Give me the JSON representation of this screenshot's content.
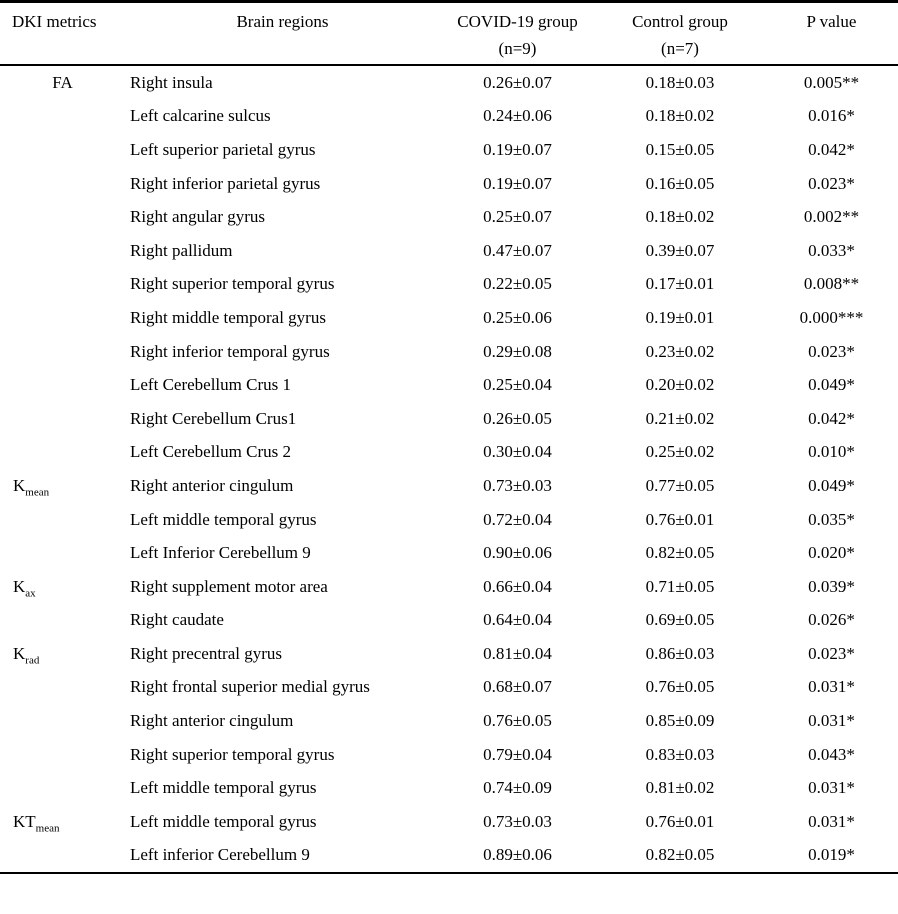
{
  "table": {
    "headers": {
      "metric": "DKI metrics",
      "region": "Brain regions",
      "covid_line1": "COVID-19 group",
      "covid_line2": "(n=9)",
      "control_line1": "Control group",
      "control_line2": "(n=7)",
      "p": "P value"
    },
    "rows": [
      {
        "metric_base": "FA",
        "metric_sub": "",
        "region": "Right insula",
        "covid": "0.26±0.07",
        "control": "0.18±0.03",
        "p": "0.005**"
      },
      {
        "metric_base": "",
        "metric_sub": "",
        "region": "Left calcarine sulcus",
        "covid": "0.24±0.06",
        "control": "0.18±0.02",
        "p": "0.016*"
      },
      {
        "metric_base": "",
        "metric_sub": "",
        "region": "Left superior parietal gyrus",
        "covid": "0.19±0.07",
        "control": "0.15±0.05",
        "p": "0.042*"
      },
      {
        "metric_base": "",
        "metric_sub": "",
        "region": "Right inferior parietal gyrus",
        "covid": "0.19±0.07",
        "control": "0.16±0.05",
        "p": "0.023*"
      },
      {
        "metric_base": "",
        "metric_sub": "",
        "region": "Right angular gyrus",
        "covid": "0.25±0.07",
        "control": "0.18±0.02",
        "p": "0.002**"
      },
      {
        "metric_base": "",
        "metric_sub": "",
        "region": "Right pallidum",
        "covid": "0.47±0.07",
        "control": "0.39±0.07",
        "p": "0.033*"
      },
      {
        "metric_base": "",
        "metric_sub": "",
        "region": "Right superior temporal gyrus",
        "covid": "0.22±0.05",
        "control": "0.17±0.01",
        "p": "0.008**"
      },
      {
        "metric_base": "",
        "metric_sub": "",
        "region": "Right middle temporal gyrus",
        "covid": "0.25±0.06",
        "control": "0.19±0.01",
        "p": "0.000***"
      },
      {
        "metric_base": "",
        "metric_sub": "",
        "region": "Right inferior temporal gyrus",
        "covid": "0.29±0.08",
        "control": "0.23±0.02",
        "p": "0.023*"
      },
      {
        "metric_base": "",
        "metric_sub": "",
        "region": "Left Cerebellum Crus 1",
        "covid": "0.25±0.04",
        "control": "0.20±0.02",
        "p": "0.049*"
      },
      {
        "metric_base": "",
        "metric_sub": "",
        "region": "Right Cerebellum Crus1",
        "covid": "0.26±0.05",
        "control": "0.21±0.02",
        "p": "0.042*"
      },
      {
        "metric_base": "",
        "metric_sub": "",
        "region": "Left Cerebellum Crus 2",
        "covid": "0.30±0.04",
        "control": "0.25±0.02",
        "p": "0.010*"
      },
      {
        "metric_base": "K",
        "metric_sub": "mean",
        "region": "Right anterior cingulum",
        "covid": "0.73±0.03",
        "control": "0.77±0.05",
        "p": "0.049*"
      },
      {
        "metric_base": "",
        "metric_sub": "",
        "region": "Left middle temporal gyrus",
        "covid": "0.72±0.04",
        "control": "0.76±0.01",
        "p": "0.035*"
      },
      {
        "metric_base": "",
        "metric_sub": "",
        "region": "Left Inferior Cerebellum 9",
        "covid": "0.90±0.06",
        "control": "0.82±0.05",
        "p": "0.020*"
      },
      {
        "metric_base": "K",
        "metric_sub": "ax",
        "region": "Right supplement motor area",
        "covid": "0.66±0.04",
        "control": "0.71±0.05",
        "p": "0.039*"
      },
      {
        "metric_base": "",
        "metric_sub": "",
        "region": "Right caudate",
        "covid": "0.64±0.04",
        "control": "0.69±0.05",
        "p": "0.026*"
      },
      {
        "metric_base": "K",
        "metric_sub": "rad",
        "region": "Right precentral gyrus",
        "covid": "0.81±0.04",
        "control": "0.86±0.03",
        "p": "0.023*"
      },
      {
        "metric_base": "",
        "metric_sub": "",
        "region": "Right frontal superior medial gyrus",
        "covid": "0.68±0.07",
        "control": "0.76±0.05",
        "p": "0.031*"
      },
      {
        "metric_base": "",
        "metric_sub": "",
        "region": "Right anterior cingulum",
        "covid": "0.76±0.05",
        "control": "0.85±0.09",
        "p": "0.031*"
      },
      {
        "metric_base": "",
        "metric_sub": "",
        "region": "Right superior temporal gyrus",
        "covid": "0.79±0.04",
        "control": "0.83±0.03",
        "p": "0.043*"
      },
      {
        "metric_base": "",
        "metric_sub": "",
        "region": "Left middle temporal gyrus",
        "covid": "0.74±0.09",
        "control": "0.81±0.02",
        "p": "0.031*"
      },
      {
        "metric_base": "KT",
        "metric_sub": "mean",
        "region": "Left middle temporal gyrus",
        "covid": "0.73±0.03",
        "control": "0.76±0.01",
        "p": "0.031*"
      },
      {
        "metric_base": "",
        "metric_sub": "",
        "region": "Left inferior Cerebellum 9",
        "covid": "0.89±0.06",
        "control": "0.82±0.05",
        "p": "0.019*"
      }
    ]
  }
}
